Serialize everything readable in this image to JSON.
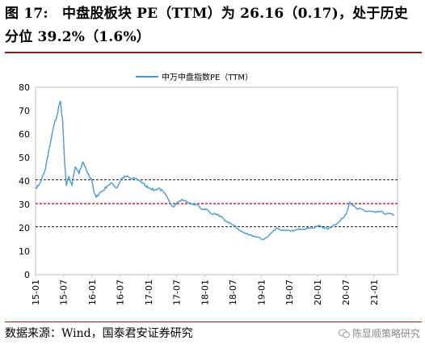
{
  "figure": {
    "title": "图 17:　中盘股板块 PE（TTM）为 26.16（0.17)，处于历史分位 39.2%（1.6%）",
    "source": "数据来源：Wind，国泰君安证券研究",
    "watermark": "陈显顺策略研究"
  },
  "colors": {
    "series": "#4a9bd4",
    "upper_line": "#333333",
    "mid_line": "#c00000",
    "lower_line": "#333333",
    "rule": "#7f1f1f"
  },
  "chart_data": {
    "type": "line",
    "title": "",
    "xlabel": "",
    "ylabel": "",
    "ylim": [
      0,
      80
    ],
    "yticks": [
      0,
      10,
      20,
      30,
      40,
      50,
      60,
      70,
      80
    ],
    "xticks": [
      "15-01",
      "15-07",
      "16-01",
      "16-07",
      "17-01",
      "17-07",
      "18-01",
      "18-07",
      "19-01",
      "19-07",
      "20-01",
      "20-07",
      "21-01"
    ],
    "legend": {
      "position": "top-center",
      "entries": [
        "中万中盘指数PE（TTM）"
      ]
    },
    "grid": false,
    "reference_lines": [
      {
        "name": "upper",
        "value": 40.5,
        "style": "dashed"
      },
      {
        "name": "mean",
        "value": 30.3,
        "style": "dashed"
      },
      {
        "name": "lower",
        "value": 20.5,
        "style": "dashed"
      }
    ],
    "series": [
      {
        "name": "中万中盘指数PE（TTM）",
        "x": [
          "2015-01-01",
          "2015-01-20",
          "2015-02-10",
          "2015-03-01",
          "2015-03-20",
          "2015-04-10",
          "2015-05-01",
          "2015-05-20",
          "2015-06-05",
          "2015-06-12",
          "2015-06-25",
          "2015-07-08",
          "2015-07-20",
          "2015-08-05",
          "2015-08-25",
          "2015-09-15",
          "2015-10-10",
          "2015-11-01",
          "2015-11-20",
          "2015-12-15",
          "2016-01-01",
          "2016-01-15",
          "2016-01-28",
          "2016-02-20",
          "2016-03-15",
          "2016-04-10",
          "2016-05-10",
          "2016-06-10",
          "2016-07-10",
          "2016-08-10",
          "2016-09-10",
          "2016-10-10",
          "2016-11-10",
          "2016-12-10",
          "2017-01-10",
          "2017-02-10",
          "2017-03-10",
          "2017-04-10",
          "2017-05-10",
          "2017-06-10",
          "2017-07-10",
          "2017-08-10",
          "2017-09-10",
          "2017-10-10",
          "2017-11-10",
          "2017-12-10",
          "2018-01-10",
          "2018-02-10",
          "2018-03-10",
          "2018-04-10",
          "2018-05-10",
          "2018-06-10",
          "2018-07-10",
          "2018-08-10",
          "2018-09-10",
          "2018-10-10",
          "2018-11-10",
          "2018-12-10",
          "2019-01-10",
          "2019-02-10",
          "2019-03-10",
          "2019-04-10",
          "2019-05-10",
          "2019-06-10",
          "2019-07-10",
          "2019-08-10",
          "2019-09-10",
          "2019-10-10",
          "2019-11-10",
          "2019-12-10",
          "2020-01-10",
          "2020-02-10",
          "2020-03-10",
          "2020-04-10",
          "2020-05-10",
          "2020-06-10",
          "2020-07-10",
          "2020-07-25",
          "2020-08-10",
          "2020-09-10",
          "2020-10-10",
          "2020-11-10",
          "2020-12-10",
          "2021-01-10",
          "2021-02-10",
          "2021-03-10",
          "2021-04-10",
          "2021-05-10"
        ],
        "values": [
          37,
          38,
          41,
          44,
          50,
          57,
          64,
          68,
          73,
          74,
          66,
          48,
          38,
          42,
          38,
          46,
          43,
          48,
          46,
          42,
          40,
          35,
          33,
          35,
          36,
          38,
          39,
          37,
          41,
          42,
          41,
          41,
          40,
          38,
          37,
          36,
          37,
          35,
          32,
          29,
          31,
          32,
          31,
          30,
          30,
          28,
          28,
          26,
          26,
          25,
          23,
          22,
          21,
          19,
          18,
          17,
          16.5,
          16,
          15,
          16,
          18,
          20,
          19,
          19,
          18.5,
          19,
          19.5,
          19.5,
          20,
          20,
          21,
          20,
          19.5,
          21,
          22,
          24,
          27,
          31,
          30,
          28,
          28,
          27,
          27,
          26.5,
          27,
          26,
          26,
          25.5
        ]
      }
    ]
  }
}
